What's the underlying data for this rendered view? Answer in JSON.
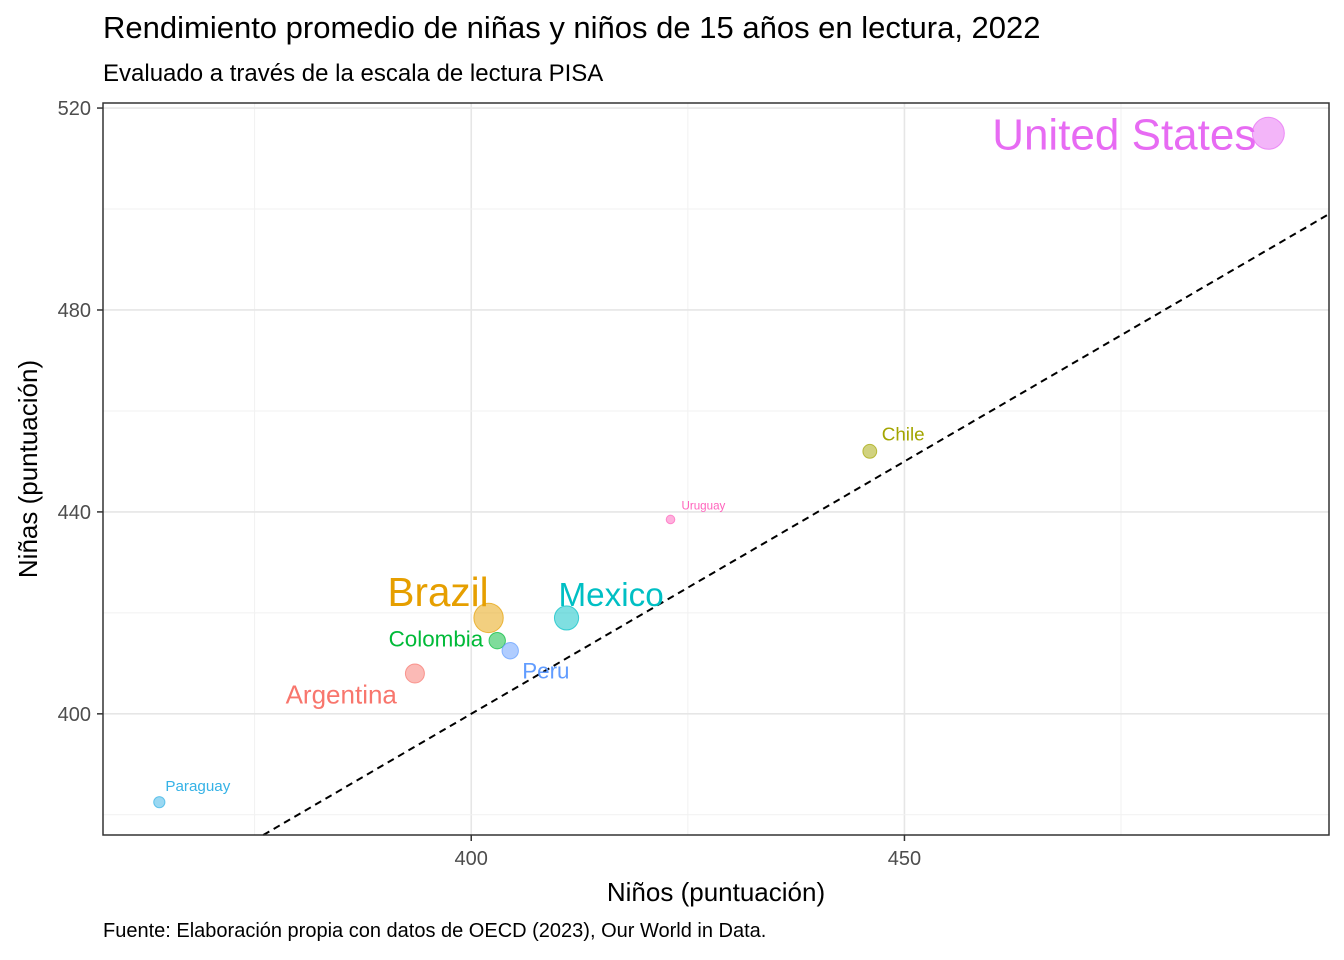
{
  "chart_data": {
    "type": "scatter",
    "title": "Rendimiento promedio de niñas y niños de 15 años en lectura, 2022",
    "subtitle": "Evaluado a través de la escala de lectura PISA",
    "xlabel": "Niños (puntuación)",
    "ylabel": "Niñas (puntuación)",
    "caption": "Fuente: Elaboración propia con datos de OECD (2023), Our World in Data.",
    "xlim": [
      357.5,
      499
    ],
    "ylim": [
      376,
      521
    ],
    "x_ticks": [
      400,
      450
    ],
    "y_ticks": [
      400,
      440,
      480,
      520
    ],
    "grid": true,
    "reference_line": "y = x",
    "points": [
      {
        "name": "United States",
        "x": 492,
        "y": 515,
        "size": 10,
        "color": "#E76BF3"
      },
      {
        "name": "Chile",
        "x": 446,
        "y": 452,
        "size": 3,
        "color": "#A3A500"
      },
      {
        "name": "Uruguay",
        "x": 423,
        "y": 438.5,
        "size": 1,
        "color": "#FF62BC"
      },
      {
        "name": "Mexico",
        "x": 411,
        "y": 419,
        "size": 7,
        "color": "#00BFC4"
      },
      {
        "name": "Brazil",
        "x": 402,
        "y": 419,
        "size": 9,
        "color": "#E69F00"
      },
      {
        "name": "Colombia",
        "x": 403,
        "y": 414.5,
        "size": 4,
        "color": "#00BA38"
      },
      {
        "name": "Peru",
        "x": 404.5,
        "y": 412.5,
        "size": 4,
        "color": "#619CFF"
      },
      {
        "name": "Argentina",
        "x": 393.5,
        "y": 408,
        "size": 5,
        "color": "#F8766D"
      },
      {
        "name": "Paraguay",
        "x": 364,
        "y": 382.5,
        "size": 2,
        "color": "#35B2E6"
      }
    ]
  }
}
